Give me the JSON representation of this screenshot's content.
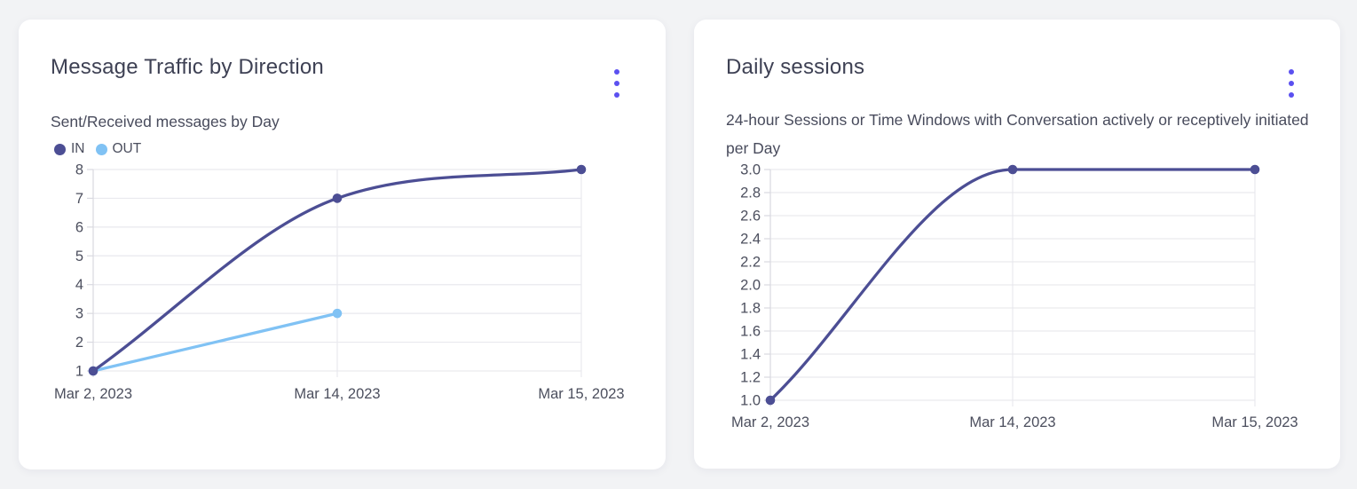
{
  "theme": {
    "accent": "#5b50f0",
    "grid": "#e9e9ee",
    "axis": "#d9d9e0",
    "tick_label": "#4c4f5e",
    "card_bg": "#ffffff",
    "page_bg": "#f2f3f5",
    "title_color": "#3e4154",
    "subtitle_color": "#484b5c"
  },
  "cards": [
    {
      "menu_icon": "kebab-menu-icon"
    },
    {
      "menu_icon": "kebab-menu-icon"
    }
  ],
  "chart_data": [
    {
      "type": "line",
      "title": "Message Traffic by Direction",
      "subtitle": "Sent/Received messages by Day",
      "categories": [
        "Mar 2, 2023",
        "Mar 14, 2023",
        "Mar 15, 2023"
      ],
      "series": [
        {
          "name": "IN",
          "color": "#4c4e94",
          "values": [
            1,
            7,
            8
          ]
        },
        {
          "name": "OUT",
          "color": "#80c2f4",
          "values": [
            1,
            3,
            null
          ]
        }
      ],
      "xlabel": "",
      "ylabel": "",
      "ylim": [
        1,
        8
      ],
      "yticks": [
        8,
        7,
        6,
        5,
        4,
        3,
        2,
        1
      ],
      "ytick_labels": [
        "8",
        "7",
        "6",
        "5",
        "4",
        "3",
        "2",
        "1"
      ],
      "grid": true,
      "curve": "monotone",
      "legend_position": "top-left"
    },
    {
      "type": "line",
      "title": "Daily sessions",
      "subtitle": "24-hour Sessions or Time Windows with Conversation actively or receptively initiated per Day",
      "categories": [
        "Mar 2, 2023",
        "Mar 14, 2023",
        "Mar 15, 2023"
      ],
      "series": [
        {
          "name": "Daily sessions",
          "color": "#4c4e94",
          "values": [
            1.0,
            3.0,
            3.0
          ]
        }
      ],
      "xlabel": "",
      "ylabel": "",
      "ylim": [
        1.0,
        3.0
      ],
      "yticks": [
        3.0,
        2.8,
        2.6,
        2.4,
        2.2,
        2.0,
        1.8,
        1.6,
        1.4,
        1.2,
        1.0
      ],
      "ytick_labels": [
        "3.0",
        "2.8",
        "2.6",
        "2.4",
        "2.2",
        "2.0",
        "1.8",
        "1.6",
        "1.4",
        "1.2",
        "1.0"
      ],
      "grid": true,
      "curve": "monotone",
      "legend_position": "none"
    }
  ]
}
